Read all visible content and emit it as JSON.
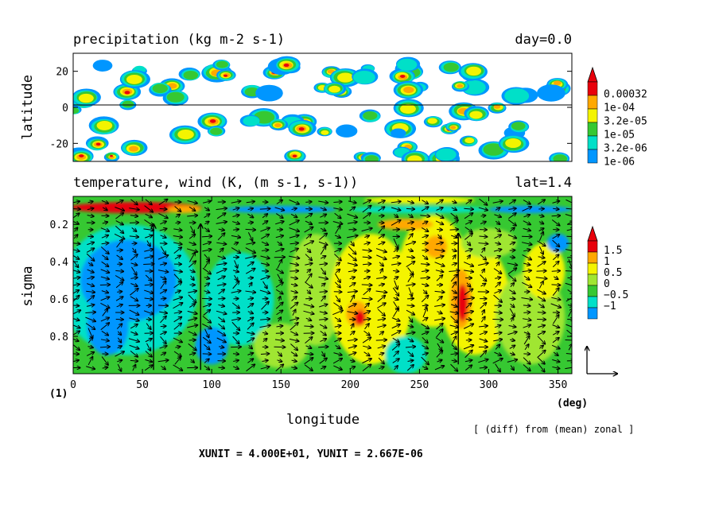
{
  "chart_data": [
    {
      "type": "heatmap",
      "title": "precipitation (kg m-2 s-1)",
      "right_title": "day=0.0",
      "ylabel": "latitude",
      "xlim": [
        0,
        360
      ],
      "ylim": [
        -30,
        30
      ],
      "y_ticks": [
        20,
        0,
        -20
      ],
      "y_tick_labels": [
        "20",
        "0",
        "-20"
      ],
      "reference_line": 0,
      "colorbar": {
        "labels": [
          "0.00032",
          "1e-04",
          "3.2e-05",
          "1e-05",
          "3.2e-06",
          "1e-06"
        ],
        "colors": [
          "#e8000b",
          "#ffa800",
          "#f4f400",
          "#36c832",
          "#00e0c8",
          "#0096ff"
        ]
      },
      "description_values": {
        "max_cells": [
          [
            30,
            20
          ],
          [
            60,
            -10
          ],
          [
            210,
            20
          ],
          [
            270,
            0
          ],
          [
            300,
            -20
          ]
        ]
      }
    },
    {
      "type": "heatmap",
      "title": "temperature, wind (K, (m s-1, s-1))",
      "right_title": "lat=1.4",
      "xlabel": "longitude",
      "ylabel": "sigma",
      "xlim": [
        0,
        360
      ],
      "ylim": [
        1.0,
        0.05
      ],
      "x_ticks": [
        0,
        50,
        100,
        150,
        200,
        250,
        300,
        350
      ],
      "x_tick_labels": [
        "0",
        "50",
        "100",
        "150",
        "200",
        "250",
        "300",
        "350"
      ],
      "y_ticks": [
        0.2,
        0.4,
        0.6,
        0.8
      ],
      "y_tick_labels": [
        "0.2",
        "0.4",
        "0.6",
        "0.8"
      ],
      "x_unit_label": "(deg)",
      "y_unit_label": "(1)",
      "colorbar": {
        "labels": [
          "1.5",
          "1",
          "0.5",
          "0",
          "−0.5",
          "−1"
        ],
        "colors": [
          "#e8000b",
          "#ffa800",
          "#f4f400",
          "#a0e632",
          "#36c832",
          "#00e0c8",
          "#0096ff"
        ]
      },
      "vector_reference": "arrows",
      "footnote": "[ (diff) from (mean) zonal ]",
      "units_line": "XUNIT = 4.000E+01, YUNIT = 2.667E-06"
    }
  ],
  "colors": {
    "red": "#e8000b",
    "orange": "#ffa800",
    "yellow": "#f4f400",
    "lightgreen": "#a0e632",
    "green": "#36c832",
    "cyan": "#00e0c8",
    "blue": "#0096ff",
    "darkblue": "#0050dc"
  }
}
